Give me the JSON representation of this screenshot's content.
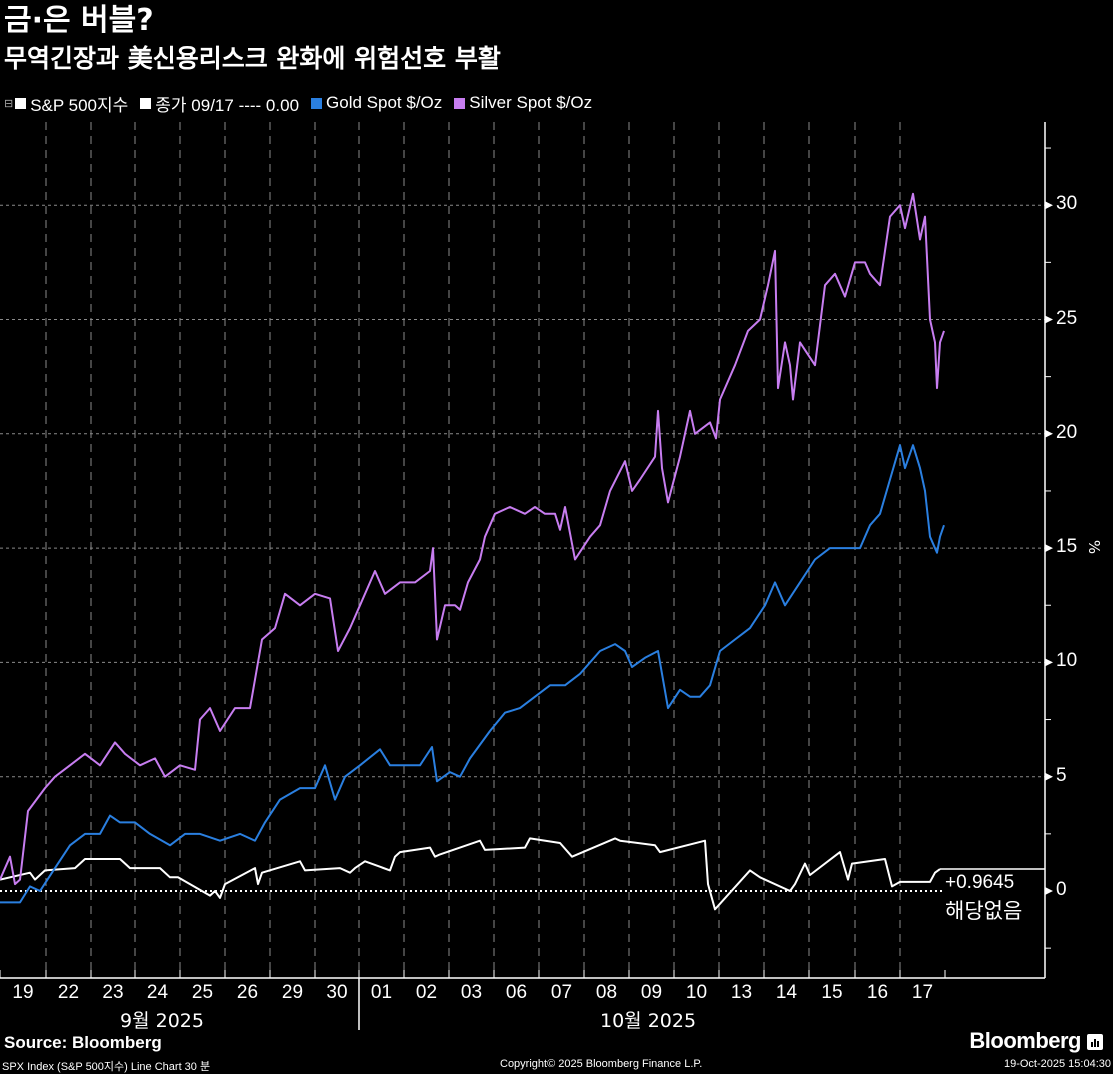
{
  "header": {
    "title": "금·은 버블?",
    "subtitle": "무역긴장과 美신용리스크 완화에 위험선호 부활"
  },
  "legend": {
    "items": [
      {
        "label": "S&P 500지수",
        "color": "#ffffff"
      },
      {
        "label": "종가 09/17 ---- 0.00",
        "color": "#ffffff"
      },
      {
        "label": "Gold Spot $/Oz",
        "color": "#2a7fe0"
      },
      {
        "label": "Silver Spot $/Oz",
        "color": "#c77df0"
      }
    ]
  },
  "axis": {
    "y_unit": "%",
    "y_ticks": [
      "30",
      "25",
      "20",
      "15",
      "10",
      "5",
      "0"
    ],
    "x_ticks": [
      "19",
      "22",
      "23",
      "24",
      "25",
      "26",
      "29",
      "30",
      "01",
      "02",
      "03",
      "06",
      "07",
      "08",
      "09",
      "10",
      "13",
      "14",
      "15",
      "16",
      "17"
    ],
    "months": [
      "9월 2025",
      "10월 2025"
    ]
  },
  "annotations": {
    "last_value": "+0.9645",
    "na_label": "해당없음"
  },
  "footer": {
    "source": "Source:  Bloomberg",
    "meta": "SPX Index (S&P 500지수) Line Chart 30 분",
    "copyright": "Copyright© 2025 Bloomberg Finance L.P.",
    "brand": "Bloomberg",
    "timestamp": "19-Oct-2025 15:04:30"
  },
  "chart_data": {
    "type": "line",
    "title": "금·은 버블?",
    "subtitle": "무역긴장과 美신용리스크 완화에 위험선호 부활",
    "xlabel": "",
    "ylabel": "%",
    "ylim": [
      -4,
      33
    ],
    "grid": true,
    "legend_position": "top-left",
    "categories": [
      "09/19",
      "09/22",
      "09/23",
      "09/24",
      "09/25",
      "09/26",
      "09/29",
      "09/30",
      "10/01",
      "10/02",
      "10/03",
      "10/06",
      "10/07",
      "10/08",
      "10/09",
      "10/10",
      "10/13",
      "10/14",
      "10/15",
      "10/16",
      "10/17"
    ],
    "series": [
      {
        "name": "S&P 500지수",
        "color": "#ffffff",
        "values": [
          0.8,
          1.4,
          1.4,
          0.8,
          0.0,
          0.9,
          1.2,
          1.0,
          1.5,
          1.8,
          2.0,
          2.2,
          2.1,
          2.3,
          2.1,
          2.2,
          0.6,
          0.3,
          1.2,
          1.4,
          0.96
        ],
        "points": [
          [
            0,
            0.5
          ],
          [
            30,
            0.8
          ],
          [
            35,
            0.5
          ],
          [
            45,
            0.9
          ],
          [
            75,
            1.0
          ],
          [
            85,
            1.4
          ],
          [
            120,
            1.4
          ],
          [
            130,
            1.0
          ],
          [
            160,
            1.0
          ],
          [
            170,
            0.6
          ],
          [
            178,
            0.6
          ],
          [
            210,
            -0.2
          ],
          [
            215,
            0.0
          ],
          [
            220,
            -0.3
          ],
          [
            225,
            0.3
          ],
          [
            255,
            1.0
          ],
          [
            258,
            0.3
          ],
          [
            262,
            0.8
          ],
          [
            300,
            1.3
          ],
          [
            305,
            0.9
          ],
          [
            340,
            1.0
          ],
          [
            350,
            0.8
          ],
          [
            355,
            1.0
          ],
          [
            365,
            1.3
          ],
          [
            390,
            0.9
          ],
          [
            395,
            1.5
          ],
          [
            400,
            1.7
          ],
          [
            430,
            1.9
          ],
          [
            435,
            1.5
          ],
          [
            440,
            1.6
          ],
          [
            480,
            2.2
          ],
          [
            485,
            1.8
          ],
          [
            525,
            1.9
          ],
          [
            530,
            2.3
          ],
          [
            560,
            2.1
          ],
          [
            572,
            1.5
          ],
          [
            615,
            2.3
          ],
          [
            620,
            2.2
          ],
          [
            655,
            2.0
          ],
          [
            660,
            1.7
          ],
          [
            705,
            2.2
          ],
          [
            708,
            0.3
          ],
          [
            715,
            -0.8
          ],
          [
            750,
            0.9
          ],
          [
            760,
            0.6
          ],
          [
            790,
            0.0
          ],
          [
            795,
            0.3
          ],
          [
            805,
            1.2
          ],
          [
            810,
            0.7
          ],
          [
            840,
            1.7
          ],
          [
            848,
            0.5
          ],
          [
            852,
            1.2
          ],
          [
            885,
            1.4
          ],
          [
            892,
            0.2
          ],
          [
            900,
            0.4
          ],
          [
            930,
            0.4
          ],
          [
            935,
            0.8
          ],
          [
            940,
            0.96
          ]
        ]
      },
      {
        "name": "Gold Spot $/Oz",
        "color": "#2a7fe0",
        "values": [
          0.0,
          2.5,
          3.2,
          2.5,
          2.2,
          2.5,
          4.5,
          5.0,
          5.8,
          5.8,
          5.2,
          7.8,
          8.5,
          9.5,
          10.5,
          8.5,
          10.5,
          12.5,
          14.5,
          16.5,
          16.0
        ],
        "points": [
          [
            0,
            -0.5
          ],
          [
            20,
            -0.5
          ],
          [
            30,
            0.2
          ],
          [
            40,
            0.0
          ],
          [
            55,
            1.0
          ],
          [
            70,
            2.0
          ],
          [
            85,
            2.5
          ],
          [
            100,
            2.5
          ],
          [
            110,
            3.3
          ],
          [
            120,
            3.0
          ],
          [
            135,
            3.0
          ],
          [
            150,
            2.5
          ],
          [
            170,
            2.0
          ],
          [
            185,
            2.5
          ],
          [
            200,
            2.5
          ],
          [
            220,
            2.2
          ],
          [
            240,
            2.5
          ],
          [
            255,
            2.2
          ],
          [
            265,
            3.0
          ],
          [
            280,
            4.0
          ],
          [
            300,
            4.5
          ],
          [
            315,
            4.5
          ],
          [
            325,
            5.5
          ],
          [
            335,
            4.0
          ],
          [
            345,
            5.0
          ],
          [
            360,
            5.5
          ],
          [
            380,
            6.2
          ],
          [
            390,
            5.5
          ],
          [
            400,
            5.5
          ],
          [
            420,
            5.5
          ],
          [
            432,
            6.3
          ],
          [
            437,
            4.8
          ],
          [
            450,
            5.2
          ],
          [
            460,
            5.0
          ],
          [
            470,
            5.8
          ],
          [
            490,
            7.0
          ],
          [
            505,
            7.8
          ],
          [
            520,
            8.0
          ],
          [
            535,
            8.5
          ],
          [
            550,
            9.0
          ],
          [
            565,
            9.0
          ],
          [
            580,
            9.5
          ],
          [
            600,
            10.5
          ],
          [
            615,
            10.8
          ],
          [
            625,
            10.5
          ],
          [
            632,
            9.8
          ],
          [
            645,
            10.2
          ],
          [
            658,
            10.5
          ],
          [
            662,
            9.5
          ],
          [
            668,
            8.0
          ],
          [
            680,
            8.8
          ],
          [
            690,
            8.5
          ],
          [
            700,
            8.5
          ],
          [
            710,
            9.0
          ],
          [
            720,
            10.5
          ],
          [
            735,
            11.0
          ],
          [
            750,
            11.5
          ],
          [
            765,
            12.5
          ],
          [
            775,
            13.5
          ],
          [
            785,
            12.5
          ],
          [
            800,
            13.5
          ],
          [
            815,
            14.5
          ],
          [
            830,
            15.0
          ],
          [
            840,
            15.0
          ],
          [
            850,
            15.0
          ],
          [
            860,
            15.0
          ],
          [
            870,
            16.0
          ],
          [
            880,
            16.5
          ],
          [
            890,
            18.0
          ],
          [
            900,
            19.5
          ],
          [
            905,
            18.5
          ],
          [
            913,
            19.5
          ],
          [
            920,
            18.5
          ],
          [
            925,
            17.5
          ],
          [
            930,
            15.5
          ],
          [
            937,
            14.8
          ],
          [
            940,
            15.5
          ],
          [
            944,
            16.0
          ]
        ]
      },
      {
        "name": "Silver Spot $/Oz",
        "color": "#c77df0",
        "values": [
          0.5,
          5.0,
          6.3,
          5.5,
          7.5,
          8.0,
          12.5,
          12.5,
          13.5,
          13.5,
          12.5,
          16.5,
          16.5,
          17.5,
          19.0,
          20.5,
          24.5,
          23.5,
          27.0,
          29.5,
          24.5
        ],
        "points": [
          [
            0,
            0.5
          ],
          [
            10,
            1.5
          ],
          [
            15,
            0.3
          ],
          [
            20,
            0.5
          ],
          [
            28,
            3.5
          ],
          [
            45,
            4.5
          ],
          [
            55,
            5.0
          ],
          [
            70,
            5.5
          ],
          [
            85,
            6.0
          ],
          [
            100,
            5.5
          ],
          [
            115,
            6.5
          ],
          [
            125,
            6.0
          ],
          [
            140,
            5.5
          ],
          [
            155,
            5.8
          ],
          [
            165,
            5.0
          ],
          [
            180,
            5.5
          ],
          [
            195,
            5.3
          ],
          [
            200,
            7.5
          ],
          [
            210,
            8.0
          ],
          [
            220,
            7.0
          ],
          [
            235,
            8.0
          ],
          [
            250,
            8.0
          ],
          [
            262,
            11.0
          ],
          [
            275,
            11.5
          ],
          [
            285,
            13.0
          ],
          [
            300,
            12.5
          ],
          [
            315,
            13.0
          ],
          [
            330,
            12.8
          ],
          [
            338,
            10.5
          ],
          [
            350,
            11.5
          ],
          [
            360,
            12.5
          ],
          [
            375,
            14.0
          ],
          [
            385,
            13.0
          ],
          [
            400,
            13.5
          ],
          [
            415,
            13.5
          ],
          [
            430,
            14.0
          ],
          [
            433,
            15.0
          ],
          [
            437,
            11.0
          ],
          [
            445,
            12.5
          ],
          [
            455,
            12.5
          ],
          [
            460,
            12.3
          ],
          [
            468,
            13.5
          ],
          [
            480,
            14.5
          ],
          [
            485,
            15.5
          ],
          [
            495,
            16.5
          ],
          [
            510,
            16.8
          ],
          [
            525,
            16.5
          ],
          [
            535,
            16.8
          ],
          [
            545,
            16.5
          ],
          [
            555,
            16.5
          ],
          [
            560,
            15.8
          ],
          [
            565,
            16.8
          ],
          [
            575,
            14.5
          ],
          [
            590,
            15.5
          ],
          [
            600,
            16.0
          ],
          [
            610,
            17.5
          ],
          [
            625,
            18.8
          ],
          [
            632,
            17.5
          ],
          [
            640,
            18.0
          ],
          [
            655,
            19.0
          ],
          [
            658,
            21.0
          ],
          [
            662,
            18.5
          ],
          [
            668,
            17.0
          ],
          [
            680,
            19.0
          ],
          [
            690,
            21.0
          ],
          [
            695,
            20.0
          ],
          [
            710,
            20.5
          ],
          [
            716,
            19.8
          ],
          [
            720,
            21.5
          ],
          [
            735,
            23.0
          ],
          [
            748,
            24.5
          ],
          [
            760,
            25.0
          ],
          [
            768,
            26.5
          ],
          [
            775,
            28.0
          ],
          [
            778,
            22.0
          ],
          [
            785,
            24.0
          ],
          [
            790,
            23.0
          ],
          [
            793,
            21.5
          ],
          [
            800,
            24.0
          ],
          [
            815,
            23.0
          ],
          [
            825,
            26.5
          ],
          [
            835,
            27.0
          ],
          [
            845,
            26.0
          ],
          [
            855,
            27.5
          ],
          [
            865,
            27.5
          ],
          [
            870,
            27.0
          ],
          [
            880,
            26.5
          ],
          [
            890,
            29.5
          ],
          [
            900,
            30.0
          ],
          [
            905,
            29.0
          ],
          [
            913,
            30.5
          ],
          [
            920,
            28.5
          ],
          [
            925,
            29.5
          ],
          [
            930,
            25.0
          ],
          [
            935,
            24.0
          ],
          [
            937,
            22.0
          ],
          [
            940,
            24.0
          ],
          [
            944,
            24.5
          ]
        ]
      }
    ]
  }
}
